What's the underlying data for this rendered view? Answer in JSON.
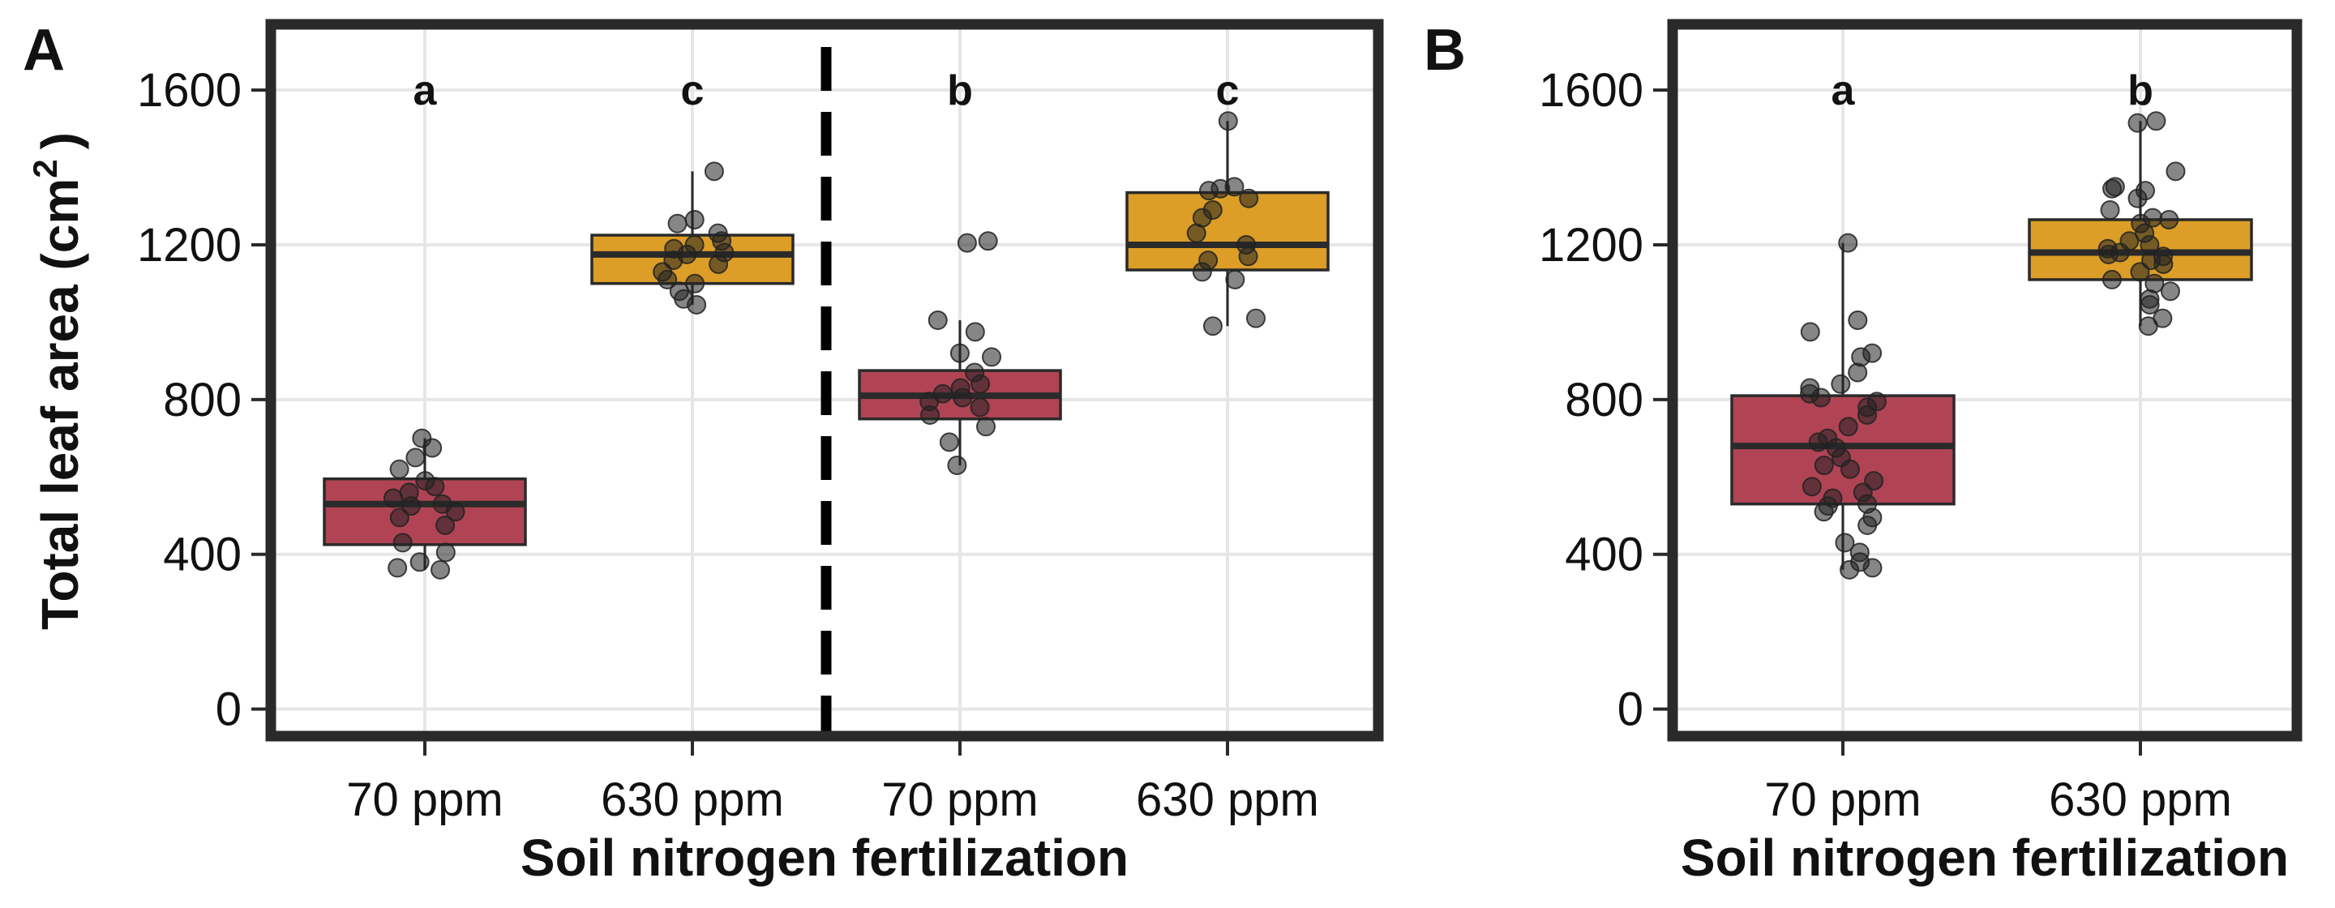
{
  "colors": {
    "low_n": "#b04454",
    "high_n": "#dc9e27",
    "frame": "#2a2a2a",
    "grid": "#e6e6e6",
    "median": "#2a2a2a",
    "point": "#222222"
  },
  "chart_data": [
    {
      "type": "box",
      "panel": "A",
      "ylabel": "Total leaf area (cm",
      "ylabel_sup": "2",
      "ylabel_close": ")",
      "xlabel": "Soil nitrogen fertilization",
      "ylim": [
        -70,
        1770
      ],
      "yticks": [
        0,
        400,
        800,
        1200,
        1600
      ],
      "grid": true,
      "divider_after_group": 2,
      "groups": [
        {
          "category": "70 ppm",
          "letter": "a",
          "color_key": "low_n",
          "box": {
            "whisker_low": 360,
            "q1": 425,
            "median": 530,
            "q3": 595,
            "whisker_high": 700
          },
          "points": [
            360,
            365,
            380,
            405,
            430,
            475,
            495,
            510,
            525,
            530,
            545,
            560,
            575,
            590,
            620,
            650,
            675,
            700
          ]
        },
        {
          "category": "630 ppm",
          "letter": "c",
          "color_key": "high_n",
          "box": {
            "whisker_low": 1045,
            "q1": 1100,
            "median": 1175,
            "q3": 1225,
            "whisker_high": 1390
          },
          "points": [
            1045,
            1060,
            1080,
            1100,
            1110,
            1130,
            1150,
            1160,
            1175,
            1180,
            1190,
            1200,
            1210,
            1230,
            1255,
            1265,
            1390
          ]
        },
        {
          "category": "70 ppm",
          "letter": "b",
          "color_key": "low_n",
          "box": {
            "whisker_low": 630,
            "q1": 750,
            "median": 810,
            "q3": 875,
            "whisker_high": 1005
          },
          "points": [
            630,
            690,
            730,
            760,
            780,
            795,
            805,
            815,
            830,
            840,
            870,
            910,
            920,
            975,
            1005,
            1205,
            1210
          ]
        },
        {
          "category": "630 ppm",
          "letter": "c",
          "color_key": "high_n",
          "box": {
            "whisker_low": 990,
            "q1": 1135,
            "median": 1200,
            "q3": 1335,
            "whisker_high": 1520
          },
          "points": [
            990,
            1010,
            1110,
            1130,
            1160,
            1170,
            1200,
            1230,
            1270,
            1290,
            1320,
            1340,
            1345,
            1350,
            1520
          ]
        }
      ]
    },
    {
      "type": "box",
      "panel": "B",
      "xlabel": "Soil nitrogen fertilization",
      "ylim": [
        -70,
        1770
      ],
      "yticks": [
        0,
        400,
        800,
        1200,
        1600
      ],
      "grid": true,
      "groups": [
        {
          "category": "70 ppm",
          "letter": "a",
          "color_key": "low_n",
          "box": {
            "whisker_low": 360,
            "q1": 530,
            "median": 680,
            "q3": 810,
            "whisker_high": 1205
          },
          "points": [
            360,
            365,
            380,
            405,
            430,
            475,
            495,
            510,
            525,
            530,
            545,
            560,
            575,
            590,
            620,
            630,
            650,
            675,
            690,
            700,
            730,
            760,
            780,
            795,
            805,
            815,
            830,
            840,
            870,
            910,
            920,
            975,
            1005,
            1205
          ]
        },
        {
          "category": "630 ppm",
          "letter": "b",
          "color_key": "high_n",
          "box": {
            "whisker_low": 990,
            "q1": 1110,
            "median": 1180,
            "q3": 1265,
            "whisker_high": 1520
          },
          "points": [
            990,
            1010,
            1045,
            1060,
            1080,
            1100,
            1110,
            1130,
            1150,
            1160,
            1170,
            1175,
            1180,
            1190,
            1200,
            1210,
            1230,
            1255,
            1265,
            1270,
            1290,
            1320,
            1340,
            1345,
            1350,
            1390,
            1515,
            1520
          ]
        }
      ]
    }
  ]
}
